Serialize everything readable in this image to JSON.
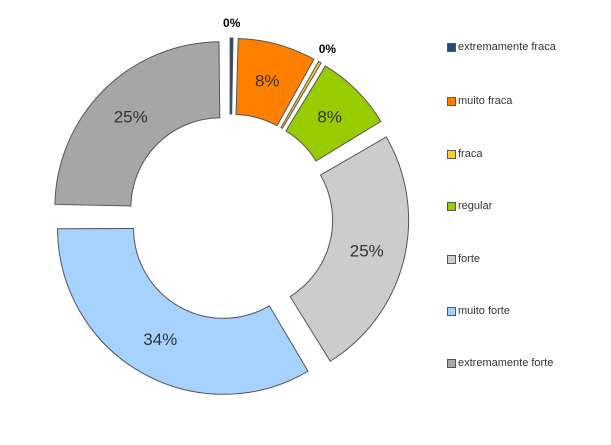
{
  "chart_data": {
    "type": "donut",
    "categories": [
      "extremamente fraca",
      "muito fraca",
      "fraca",
      "regular",
      "forte",
      "muito forte",
      "extremamente forte"
    ],
    "values": [
      0,
      8,
      0,
      8,
      25,
      34,
      25
    ],
    "labels": [
      "0%",
      "8%",
      "0%",
      "8%",
      "25%",
      "34%",
      "25%"
    ],
    "colors": [
      "#1f4e79",
      "#ff8000",
      "#ffcc33",
      "#99cc00",
      "#cccccc",
      "#a6d2ff",
      "#a6a6a6"
    ],
    "exploded": true,
    "legend_position": "right"
  }
}
